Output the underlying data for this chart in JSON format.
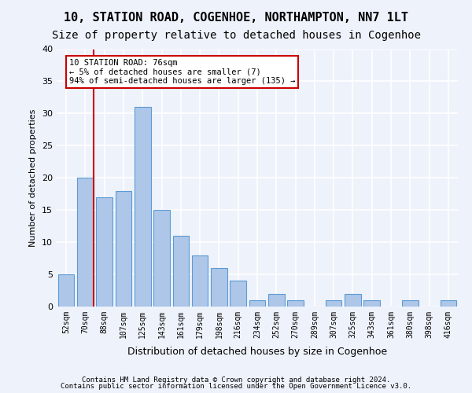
{
  "title1": "10, STATION ROAD, COGENHOE, NORTHAMPTON, NN7 1LT",
  "title2": "Size of property relative to detached houses in Cogenhoe",
  "xlabel": "Distribution of detached houses by size in Cogenhoe",
  "ylabel": "Number of detached properties",
  "bar_labels": [
    "52sqm",
    "70sqm",
    "88sqm",
    "107sqm",
    "125sqm",
    "143sqm",
    "161sqm",
    "179sqm",
    "198sqm",
    "216sqm",
    "234sqm",
    "252sqm",
    "270sqm",
    "289sqm",
    "307sqm",
    "325sqm",
    "343sqm",
    "361sqm",
    "380sqm",
    "398sqm",
    "416sqm"
  ],
  "bar_values": [
    5,
    20,
    17,
    18,
    31,
    15,
    11,
    8,
    6,
    4,
    1,
    2,
    1,
    0,
    1,
    2,
    1,
    0,
    1,
    0,
    1
  ],
  "bar_color": "#aec6e8",
  "bar_edge_color": "#5b9bd5",
  "vline_color": "#cc0000",
  "annotation_title": "10 STATION ROAD: 76sqm",
  "annotation_line1": "← 5% of detached houses are smaller (7)",
  "annotation_line2": "94% of semi-detached houses are larger (135) →",
  "annotation_box_color": "#cc0000",
  "ylim": [
    0,
    40
  ],
  "yticks": [
    0,
    5,
    10,
    15,
    20,
    25,
    30,
    35,
    40
  ],
  "footer1": "Contains HM Land Registry data © Crown copyright and database right 2024.",
  "footer2": "Contains public sector information licensed under the Open Government Licence v3.0.",
  "bg_color": "#eef2fb",
  "plot_bg_color": "#eef2fb",
  "grid_color": "#ffffff",
  "title1_fontsize": 11,
  "title2_fontsize": 10
}
